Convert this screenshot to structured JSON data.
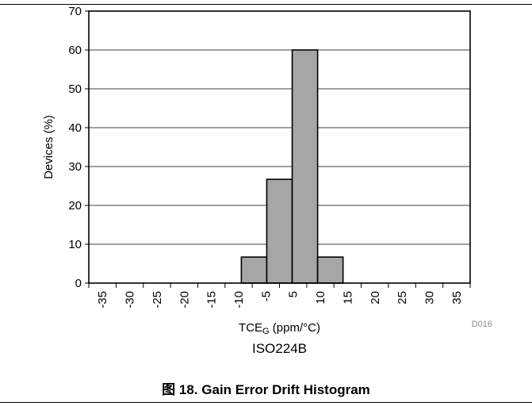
{
  "chart_data": {
    "type": "bar",
    "title": "",
    "xlabel_main": "TCE",
    "xlabel_sub": "G",
    "xlabel_rest": " (ppm/°C)",
    "ylabel": "Devices (%)",
    "subtitle": "ISO224B",
    "code": "D016",
    "ylim": [
      0,
      70
    ],
    "yticks": [
      "0",
      "10",
      "20",
      "30",
      "40",
      "50",
      "60",
      "70"
    ],
    "xlim": [
      -37.5,
      37.5
    ],
    "xticks": [
      "-35",
      "-30",
      "-25",
      "-20",
      "-15",
      "-10",
      "-5",
      "5",
      "10",
      "15",
      "20",
      "25",
      "30",
      "35"
    ],
    "bins": [
      {
        "from": -7.5,
        "to": -2.5,
        "value": 6.7
      },
      {
        "from": -2.5,
        "to": 2.5,
        "value": 26.7
      },
      {
        "from": 2.5,
        "to": 7.5,
        "value": 60.0
      },
      {
        "from": 7.5,
        "to": 12.5,
        "value": 6.7
      }
    ],
    "grid": true,
    "bar_color": "#a6a6a6"
  },
  "figure": {
    "label": "图 18.",
    "caption": "Gain Error Drift Histogram"
  }
}
